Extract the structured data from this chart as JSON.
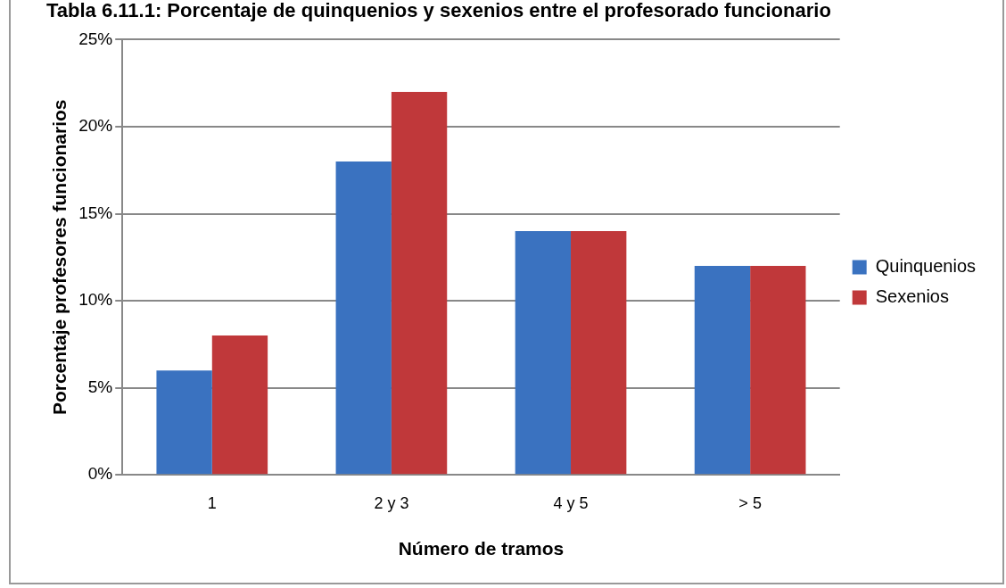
{
  "chart_data": {
    "type": "bar",
    "title": "Tabla 6.11.1: Porcentaje de quinquenios y sexenios entre el profesorado funcionario",
    "xlabel": "Número de tramos",
    "ylabel": "Porcentaje profesores funcionarios",
    "categories": [
      "1",
      "2 y 3",
      "4 y 5",
      "> 5"
    ],
    "series": [
      {
        "name": "Quinquenios",
        "color": "#3a72c0",
        "values": [
          6,
          18,
          14,
          12
        ]
      },
      {
        "name": "Sexenios",
        "color": "#c0383a",
        "values": [
          8,
          22,
          14,
          12
        ]
      }
    ],
    "ylim": [
      0,
      25
    ],
    "yticks": [
      {
        "value": 0,
        "label": "0%"
      },
      {
        "value": 5,
        "label": "5%"
      },
      {
        "value": 10,
        "label": "10%"
      },
      {
        "value": 15,
        "label": "15%"
      },
      {
        "value": 20,
        "label": "20%"
      },
      {
        "value": 25,
        "label": "25%"
      }
    ],
    "grid": "y",
    "legend": "right"
  }
}
